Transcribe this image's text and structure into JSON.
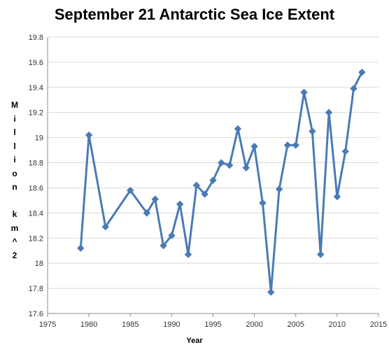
{
  "chart_data": {
    "type": "line",
    "title": "September 21 Antarctic Sea Ice Extent",
    "xlabel": "Year",
    "ylabel": "Million km^2",
    "xlim": [
      1975,
      2015
    ],
    "ylim": [
      17.6,
      19.8
    ],
    "xticks": [
      "1975",
      "1980",
      "1985",
      "1990",
      "1995",
      "2000",
      "2005",
      "2010",
      "2015"
    ],
    "yticks": [
      "17.6",
      "17.8",
      "18",
      "18.2",
      "18.4",
      "18.6",
      "18.8",
      "19",
      "19.2",
      "19.4",
      "19.6",
      "19.8"
    ],
    "grid": "horizontal",
    "color": "#4a7ab5",
    "series": [
      {
        "x": [
          1979,
          1980,
          1982,
          1985,
          1987,
          1988,
          1989,
          1990,
          1991,
          1992,
          1993,
          1994,
          1995,
          1996,
          1997,
          1998,
          1999,
          2000,
          2001,
          2002,
          2003,
          2004,
          2005,
          2006,
          2007,
          2008,
          2009,
          2010,
          2011,
          2012,
          2013
        ],
        "y": [
          18.12,
          19.02,
          18.29,
          18.58,
          18.4,
          18.51,
          18.14,
          18.22,
          18.47,
          18.07,
          18.62,
          18.55,
          18.66,
          18.8,
          18.78,
          19.07,
          18.76,
          18.93,
          18.48,
          17.77,
          18.59,
          18.94,
          18.94,
          19.36,
          19.05,
          18.07,
          19.2,
          18.53,
          18.89,
          19.39,
          19.52
        ]
      }
    ]
  }
}
